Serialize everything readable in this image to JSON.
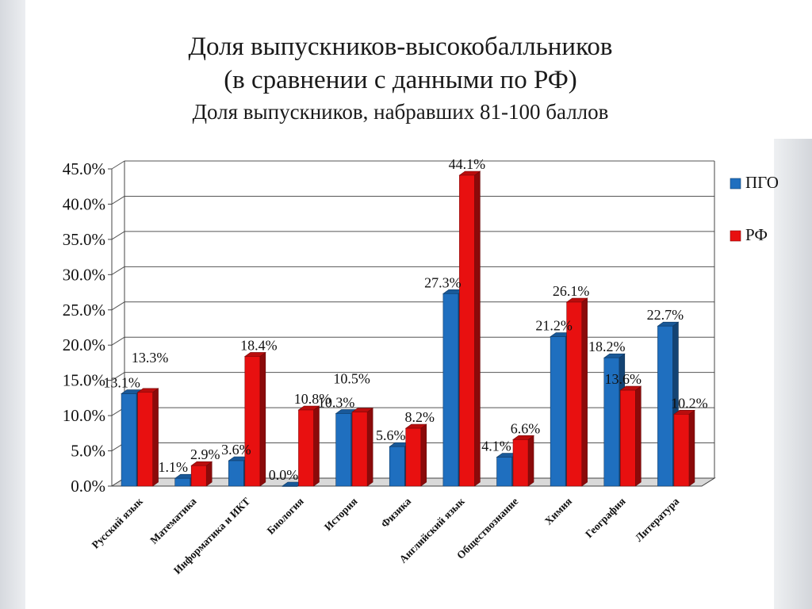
{
  "slide": {
    "title_line1": "Доля выпускников-высокобалльников",
    "title_line2": "(в сравнении с данными по РФ)",
    "subtitle": "Доля выпускников, набравших 81-100 баллов"
  },
  "chart_data": {
    "type": "bar",
    "title": "",
    "xlabel": "",
    "ylabel": "",
    "ylim": [
      0,
      45
    ],
    "y_ticks": [
      0,
      5,
      10,
      15,
      20,
      25,
      30,
      35,
      40,
      45
    ],
    "y_tick_labels": [
      "0.0%",
      "5.0%",
      "10.0%",
      "15.0%",
      "20.0%",
      "25.0%",
      "30.0%",
      "35.0%",
      "40.0%",
      "45.0%"
    ],
    "grid": true,
    "legend_position": "right",
    "categories": [
      "Русский язык",
      "Математика",
      "Информатика и ИКТ",
      "Биология",
      "История",
      "Физика",
      "Английский язык",
      "Обществознание",
      "Химия",
      "География",
      "Литература"
    ],
    "series": [
      {
        "name": "ПГО",
        "color": "#1f6fbf",
        "values": [
          13.1,
          1.1,
          3.6,
          0.0,
          10.3,
          5.6,
          27.3,
          4.1,
          21.2,
          18.2,
          22.7
        ],
        "labels": [
          "13.1%",
          "1.1%",
          "3.6%",
          "0.0%",
          "10.3%",
          "5.6%",
          "27.3%",
          "4.1%",
          "21.2%",
          "18.2%",
          "22.7%"
        ]
      },
      {
        "name": "РФ",
        "color": "#e81010",
        "values": [
          13.3,
          2.9,
          18.4,
          10.8,
          10.5,
          8.2,
          44.1,
          6.6,
          26.1,
          13.6,
          10.2
        ],
        "labels": [
          "13.3%",
          "2.9%",
          "18.4%",
          "10.8%",
          "10.5%",
          "8.2%",
          "44.1%",
          "6.6%",
          "26.1%",
          "13.6%",
          "10.2%"
        ]
      }
    ]
  }
}
